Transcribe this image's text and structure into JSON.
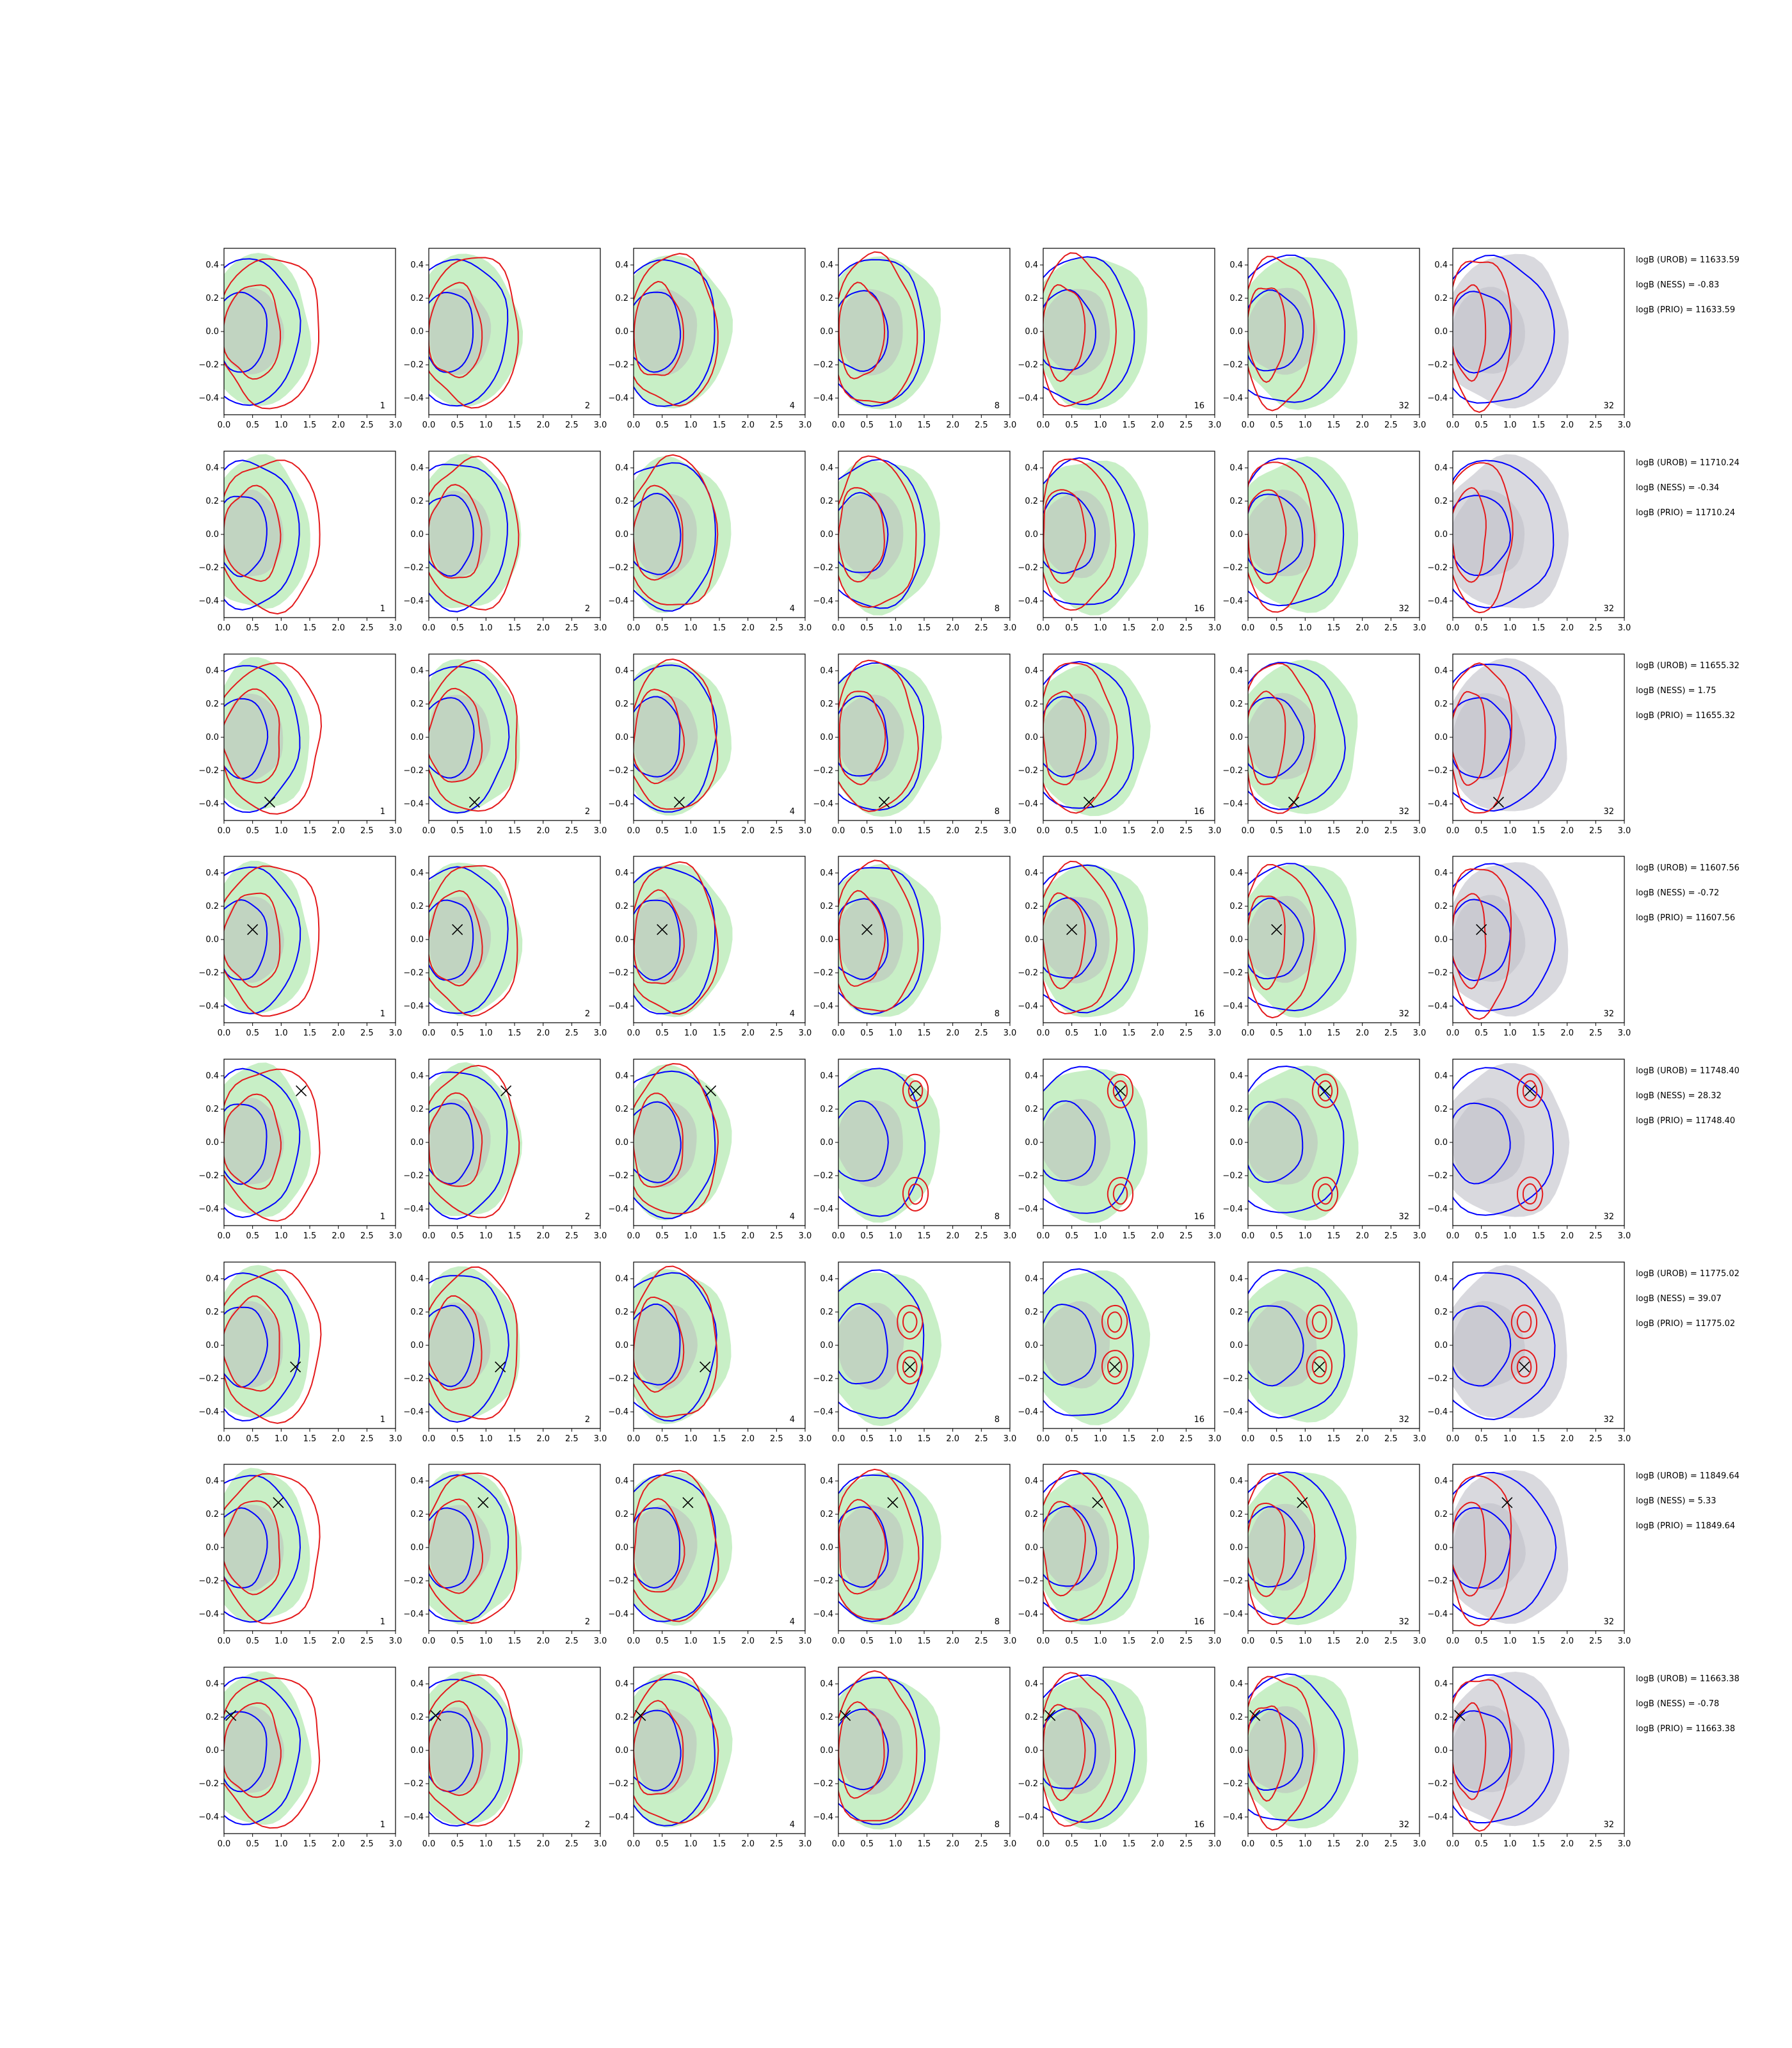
{
  "chart_data": {
    "type": "contour-grid",
    "layout": {
      "rows": 8,
      "cols": 7
    },
    "xlim": [
      0.0,
      3.0
    ],
    "ylim": [
      -0.5,
      0.5
    ],
    "x_ticks": [
      "0.0",
      "0.5",
      "1.0",
      "1.5",
      "2.0",
      "2.5",
      "3.0"
    ],
    "y_ticks": [
      "0.4",
      "0.2",
      "0.0",
      "−0.2",
      "−0.4"
    ],
    "y_tick_values": [
      0.4,
      0.2,
      0.0,
      -0.2,
      -0.4
    ],
    "panel_labels": [
      "1",
      "2",
      "4",
      "8",
      "16",
      "32",
      "32"
    ],
    "colors": {
      "red": "#e41a1c",
      "blue": "#0000ff",
      "green_fill": "#c8efc6",
      "gray_fill": "#d9d9de",
      "gray_inner": "#c7c7cf"
    },
    "rows": [
      {
        "truth": null,
        "logB": [
          "logB (UROB) = 11633.59",
          "logB (NESS) = -0.83",
          "logB (PRIO) = 11633.59"
        ]
      },
      {
        "truth": null,
        "logB": [
          "logB (UROB) = 11710.24",
          "logB (NESS) = -0.34",
          "logB (PRIO) = 11710.24"
        ]
      },
      {
        "truth": [
          0.8,
          -0.39
        ],
        "logB": [
          "logB (UROB) = 11655.32",
          "logB (NESS) = 1.75",
          "logB (PRIO) = 11655.32"
        ]
      },
      {
        "truth": [
          0.5,
          0.06
        ],
        "logB": [
          "logB (UROB) = 11607.56",
          "logB (NESS) = -0.72",
          "logB (PRIO) = 11607.56"
        ]
      },
      {
        "truth": [
          1.35,
          0.31
        ],
        "logB": [
          "logB (UROB) = 11748.40",
          "logB (NESS) = 28.32",
          "logB (PRIO) = 11748.40"
        ]
      },
      {
        "truth": [
          1.25,
          -0.13
        ],
        "logB": [
          "logB (UROB) = 11775.02",
          "logB (NESS) = 39.07",
          "logB (PRIO) = 11775.02"
        ]
      },
      {
        "truth": [
          0.95,
          0.27
        ],
        "logB": [
          "logB (UROB) = 11849.64",
          "logB (NESS) = 5.33",
          "logB (PRIO) = 11849.64"
        ]
      },
      {
        "truth": [
          0.12,
          0.21
        ],
        "logB": [
          "logB (UROB) = 11663.38",
          "logB (NESS) = -0.78",
          "logB (PRIO) = 11663.38"
        ]
      }
    ]
  }
}
